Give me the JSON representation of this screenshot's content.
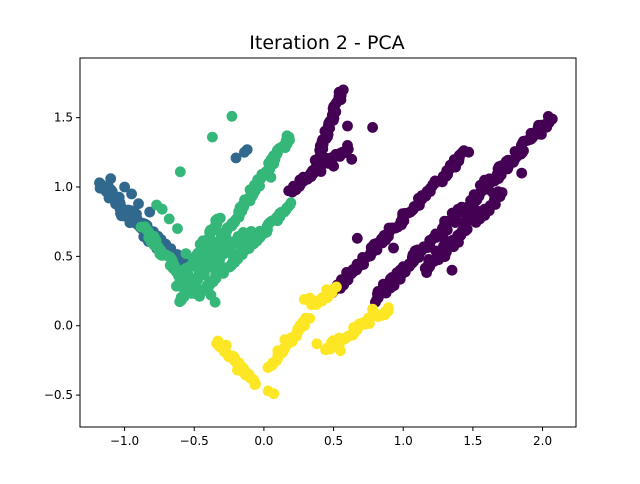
{
  "chart_data": {
    "type": "scatter",
    "title": "Iteration 2 - PCA",
    "xlabel": "",
    "ylabel": "",
    "xlim": [
      -1.32,
      2.24
    ],
    "ylim": [
      -0.73,
      1.93
    ],
    "xticks": [
      -1.0,
      -0.5,
      0.0,
      0.5,
      1.0,
      1.5,
      2.0
    ],
    "xtick_labels": [
      "−1.0",
      "−0.5",
      "0.0",
      "0.5",
      "1.0",
      "1.5",
      "2.0"
    ],
    "yticks": [
      -0.5,
      0.0,
      0.5,
      1.0,
      1.5
    ],
    "yticks_labels": [
      "−0.5",
      "0.0",
      "0.5",
      "1.0",
      "1.5"
    ],
    "grid": false,
    "legend": "none",
    "colormap": "viridis",
    "series": [
      {
        "color": "#440154",
        "bands": [
          {
            "from": [
              0.35,
              1.1
            ],
            "to": [
              0.55,
              1.68
            ],
            "width": 0.04
          },
          {
            "from": [
              0.18,
              0.97
            ],
            "to": [
              0.6,
              1.28
            ],
            "width": 0.05
          },
          {
            "from": [
              0.48,
              0.23
            ],
            "to": [
              1.46,
              1.26
            ],
            "width": 0.05
          },
          {
            "from": [
              0.8,
              0.2
            ],
            "to": [
              2.06,
              1.49
            ],
            "width": 0.07
          },
          {
            "from": [
              1.15,
              0.4
            ],
            "to": [
              1.7,
              0.97
            ],
            "width": 0.08
          }
        ],
        "points": [
          {
            "x": 0.57,
            "y": 1.7
          },
          {
            "x": 0.6,
            "y": 1.44
          },
          {
            "x": 0.78,
            "y": 1.43
          },
          {
            "x": 0.6,
            "y": 1.3
          },
          {
            "x": 0.63,
            "y": 1.2
          },
          {
            "x": 0.5,
            "y": 1.15
          },
          {
            "x": 0.23,
            "y": 0.98
          },
          {
            "x": 0.67,
            "y": 0.63
          },
          {
            "x": 0.93,
            "y": 0.56
          },
          {
            "x": 1.35,
            "y": 0.4
          },
          {
            "x": 1.55,
            "y": 0.77
          },
          {
            "x": 1.85,
            "y": 1.1
          },
          {
            "x": 2.07,
            "y": 1.49
          },
          {
            "x": 0.55,
            "y": 0.27
          },
          {
            "x": 0.8,
            "y": 0.17
          }
        ]
      },
      {
        "color": "#31688e",
        "bands": [
          {
            "from": [
              -1.17,
              1.02
            ],
            "to": [
              -0.62,
              0.47
            ],
            "width": 0.06
          },
          {
            "from": [
              -1.02,
              0.82
            ],
            "to": [
              -0.55,
              0.4
            ],
            "width": 0.07
          }
        ],
        "points": [
          {
            "x": -1.18,
            "y": 1.03
          },
          {
            "x": -1.1,
            "y": 1.06
          },
          {
            "x": -1.0,
            "y": 1.0
          },
          {
            "x": -0.95,
            "y": 0.95
          },
          {
            "x": -0.9,
            "y": 0.88
          },
          {
            "x": -0.82,
            "y": 0.82
          },
          {
            "x": -0.85,
            "y": 0.66
          },
          {
            "x": -0.79,
            "y": 0.6
          },
          {
            "x": -0.74,
            "y": 0.52
          },
          {
            "x": -0.2,
            "y": 1.21
          },
          {
            "x": -0.14,
            "y": 1.25
          },
          {
            "x": -0.12,
            "y": 1.27
          }
        ]
      },
      {
        "color": "#35b779",
        "bands": [
          {
            "from": [
              -0.6,
              0.17
            ],
            "to": [
              0.18,
              1.36
            ],
            "width": 0.04
          },
          {
            "from": [
              -0.47,
              0.22
            ],
            "to": [
              0.2,
              0.88
            ],
            "width": 0.04
          },
          {
            "from": [
              -0.62,
              0.28
            ],
            "to": [
              -0.32,
              0.78
            ],
            "width": 0.04
          },
          {
            "from": [
              -0.55,
              0.29
            ],
            "to": [
              -0.1,
              0.69
            ],
            "width": 0.05
          },
          {
            "from": [
              -0.87,
              0.72
            ],
            "to": [
              -0.5,
              0.23
            ],
            "width": 0.05
          }
        ],
        "points": [
          {
            "x": -0.77,
            "y": 0.87
          },
          {
            "x": -0.73,
            "y": 0.84
          },
          {
            "x": -0.68,
            "y": 0.77
          },
          {
            "x": -0.62,
            "y": 0.7
          },
          {
            "x": -0.56,
            "y": 0.52
          },
          {
            "x": -0.57,
            "y": 0.38
          },
          {
            "x": -0.6,
            "y": 1.11
          },
          {
            "x": -0.37,
            "y": 1.36
          },
          {
            "x": -0.23,
            "y": 1.51
          },
          {
            "x": -0.35,
            "y": 0.17
          },
          {
            "x": -0.38,
            "y": 0.22
          },
          {
            "x": 0.05,
            "y": 1.07
          },
          {
            "x": 0.18,
            "y": 1.36
          },
          {
            "x": -0.1,
            "y": 0.98
          },
          {
            "x": -0.45,
            "y": 0.55
          }
        ]
      },
      {
        "color": "#fde725",
        "bands": [
          {
            "from": [
              -0.33,
              -0.12
            ],
            "to": [
              -0.06,
              -0.42
            ],
            "width": 0.03
          },
          {
            "from": [
              0.04,
              -0.31
            ],
            "to": [
              0.32,
              0.06
            ],
            "width": 0.03
          },
          {
            "from": [
              0.35,
              0.14
            ],
            "to": [
              0.5,
              0.25
            ],
            "width": 0.03
          },
          {
            "from": [
              0.44,
              -0.17
            ],
            "to": [
              0.9,
              0.12
            ],
            "width": 0.05
          }
        ],
        "points": [
          {
            "x": -0.33,
            "y": -0.11
          },
          {
            "x": -0.27,
            "y": -0.14
          },
          {
            "x": -0.19,
            "y": -0.32
          },
          {
            "x": -0.06,
            "y": -0.42
          },
          {
            "x": 0.03,
            "y": -0.47
          },
          {
            "x": 0.07,
            "y": -0.49
          },
          {
            "x": 0.1,
            "y": -0.18
          },
          {
            "x": 0.15,
            "y": -0.1
          },
          {
            "x": 0.29,
            "y": 0.19
          },
          {
            "x": 0.33,
            "y": 0.2
          },
          {
            "x": 0.38,
            "y": -0.13
          },
          {
            "x": 0.45,
            "y": 0.26
          },
          {
            "x": 0.52,
            "y": 0.28
          },
          {
            "x": 0.78,
            "y": 0.12
          },
          {
            "x": 0.65,
            "y": -0.05
          },
          {
            "x": 0.55,
            "y": -0.18
          }
        ]
      }
    ]
  }
}
